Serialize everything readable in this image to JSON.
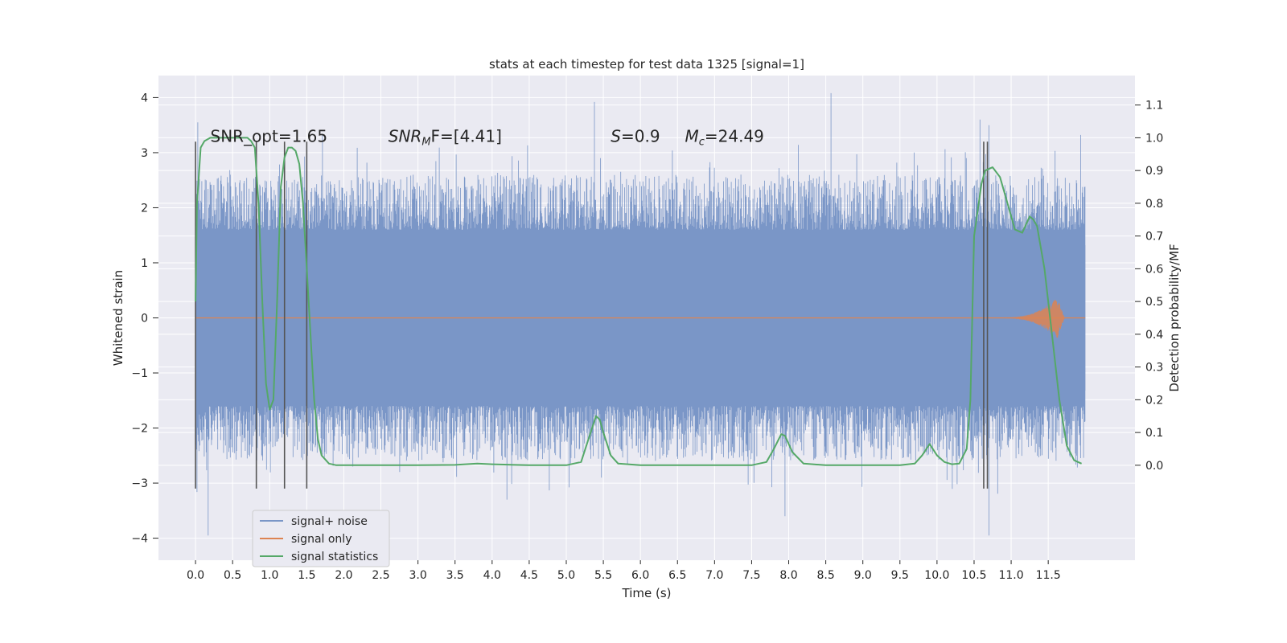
{
  "chart_data": {
    "type": "line",
    "title": "stats at each timestep for test data 1325 [signal=1]",
    "xlabel": "Time (s)",
    "ylabel": "Whitened strain",
    "ylabel_right": "Detection probability/MF",
    "xlim": [
      -0.5,
      12.67
    ],
    "ylim": [
      -4.4,
      4.4
    ],
    "ylim_right": [
      -0.29,
      1.19
    ],
    "grid": true,
    "legend_position": "lower-left",
    "x_ticks": [
      0.0,
      0.5,
      1.0,
      1.5,
      2.0,
      2.5,
      3.0,
      3.5,
      4.0,
      4.5,
      5.0,
      5.5,
      6.0,
      6.5,
      7.0,
      7.5,
      8.0,
      8.5,
      9.0,
      9.5,
      10.0,
      10.5,
      11.0,
      11.5
    ],
    "x_tick_labels": [
      "0.0",
      "0.5",
      "1.0",
      "1.5",
      "2.0",
      "2.5",
      "3.0",
      "3.5",
      "4.0",
      "4.5",
      "5.0",
      "5.5",
      "6.0",
      "6.5",
      "7.0",
      "7.5",
      "8.0",
      "8.5",
      "9.0",
      "9.5",
      "10.0",
      "10.5",
      "11.0",
      "11.5"
    ],
    "y_ticks": [
      -4,
      -3,
      -2,
      -1,
      0,
      1,
      2,
      3,
      4
    ],
    "y_tick_labels": [
      "−4",
      "−3",
      "−2",
      "−1",
      "0",
      "1",
      "2",
      "3",
      "4"
    ],
    "y_ticks_right": [
      0.0,
      0.1,
      0.2,
      0.3,
      0.4,
      0.5,
      0.6,
      0.7,
      0.8,
      0.9,
      1.0,
      1.1
    ],
    "y_tick_labels_right": [
      "0.0",
      "0.1",
      "0.2",
      "0.3",
      "0.4",
      "0.5",
      "0.6",
      "0.7",
      "0.8",
      "0.9",
      "1.0",
      "1.1"
    ],
    "annotations": [
      {
        "text": "SNR_opt=1.65",
        "x": 0.2,
        "y": 3.3
      },
      {
        "text": "SNR_MF=[4.41]",
        "display_main": "SNR",
        "display_sub": "M",
        "display_tail": "F=[4.41]",
        "x": 2.6,
        "y": 3.3
      },
      {
        "text": "S=0.9",
        "display_main": "S",
        "display_tail": "=0.9",
        "x": 5.6,
        "y": 3.3
      },
      {
        "text": "M_c=24.49",
        "display_main": "M",
        "display_sub": "c",
        "display_tail": "=24.49",
        "x": 6.6,
        "y": 3.3
      }
    ],
    "vlines": {
      "x": [
        0.0,
        0.82,
        1.2,
        1.5,
        10.63,
        10.68
      ],
      "ymin": -3.1,
      "ymax": 3.2,
      "color": "#555555"
    },
    "noise_envelope": {
      "core_half_width": 1.32,
      "typical_peak_range": [
        1.6,
        2.6
      ],
      "notable_peaks": [
        {
          "x": 0.03,
          "y": 3.55
        },
        {
          "x": 0.17,
          "y": -3.95
        },
        {
          "x": 5.38,
          "y": 3.92
        },
        {
          "x": 8.57,
          "y": 4.08
        },
        {
          "x": 10.7,
          "y": -3.95
        },
        {
          "x": 10.58,
          "y": 3.6
        },
        {
          "x": 10.7,
          "y": 3.5
        },
        {
          "x": 7.95,
          "y": -3.6
        },
        {
          "x": 4.2,
          "y": -3.3
        }
      ],
      "x_range": [
        0.0,
        12.0
      ]
    },
    "chirp": {
      "x_range": [
        10.8,
        11.72
      ],
      "peak_x": 11.62,
      "peak_amplitude": 0.38
    },
    "series": [
      {
        "name": "signal+ noise",
        "color": "#7a96c7",
        "axis": "left",
        "style": "dense-noise"
      },
      {
        "name": "signal only",
        "color": "#dd8452",
        "axis": "left",
        "style": "chirp"
      },
      {
        "name": "signal statistics",
        "color": "#55a868",
        "axis": "right",
        "x": [
          0.0,
          0.02,
          0.07,
          0.12,
          0.2,
          0.3,
          0.4,
          0.5,
          0.6,
          0.7,
          0.75,
          0.8,
          0.85,
          0.9,
          0.95,
          1.0,
          1.05,
          1.1,
          1.15,
          1.2,
          1.25,
          1.3,
          1.35,
          1.4,
          1.45,
          1.5,
          1.55,
          1.6,
          1.65,
          1.7,
          1.8,
          1.9,
          2.0,
          2.5,
          3.0,
          3.5,
          3.8,
          4.0,
          4.5,
          5.0,
          5.2,
          5.3,
          5.4,
          5.45,
          5.5,
          5.6,
          5.7,
          6.0,
          6.5,
          7.0,
          7.5,
          7.7,
          7.8,
          7.9,
          7.95,
          8.05,
          8.2,
          8.5,
          9.0,
          9.5,
          9.7,
          9.8,
          9.9,
          10.0,
          10.1,
          10.2,
          10.3,
          10.4,
          10.45,
          10.5,
          10.6,
          10.65,
          10.75,
          10.85,
          10.95,
          11.05,
          11.15,
          11.25,
          11.3,
          11.35,
          11.45,
          11.55,
          11.65,
          11.75,
          11.85,
          11.95
        ],
        "values": [
          0.5,
          0.8,
          0.97,
          0.99,
          1.0,
          1.0,
          1.0,
          1.0,
          1.0,
          1.0,
          0.99,
          0.97,
          0.8,
          0.5,
          0.25,
          0.17,
          0.2,
          0.5,
          0.85,
          0.94,
          0.97,
          0.97,
          0.96,
          0.92,
          0.8,
          0.6,
          0.4,
          0.2,
          0.08,
          0.03,
          0.005,
          0.0,
          0.0,
          0.0,
          0.0,
          0.001,
          0.005,
          0.003,
          0.0,
          0.0,
          0.01,
          0.08,
          0.15,
          0.14,
          0.1,
          0.03,
          0.005,
          0.0,
          0.0,
          0.0,
          0.0,
          0.01,
          0.05,
          0.095,
          0.09,
          0.04,
          0.005,
          0.0,
          0.0,
          0.0,
          0.005,
          0.03,
          0.065,
          0.03,
          0.01,
          0.003,
          0.005,
          0.05,
          0.2,
          0.7,
          0.86,
          0.9,
          0.91,
          0.88,
          0.8,
          0.72,
          0.71,
          0.76,
          0.75,
          0.73,
          0.6,
          0.4,
          0.2,
          0.06,
          0.015,
          0.005
        ]
      }
    ]
  }
}
